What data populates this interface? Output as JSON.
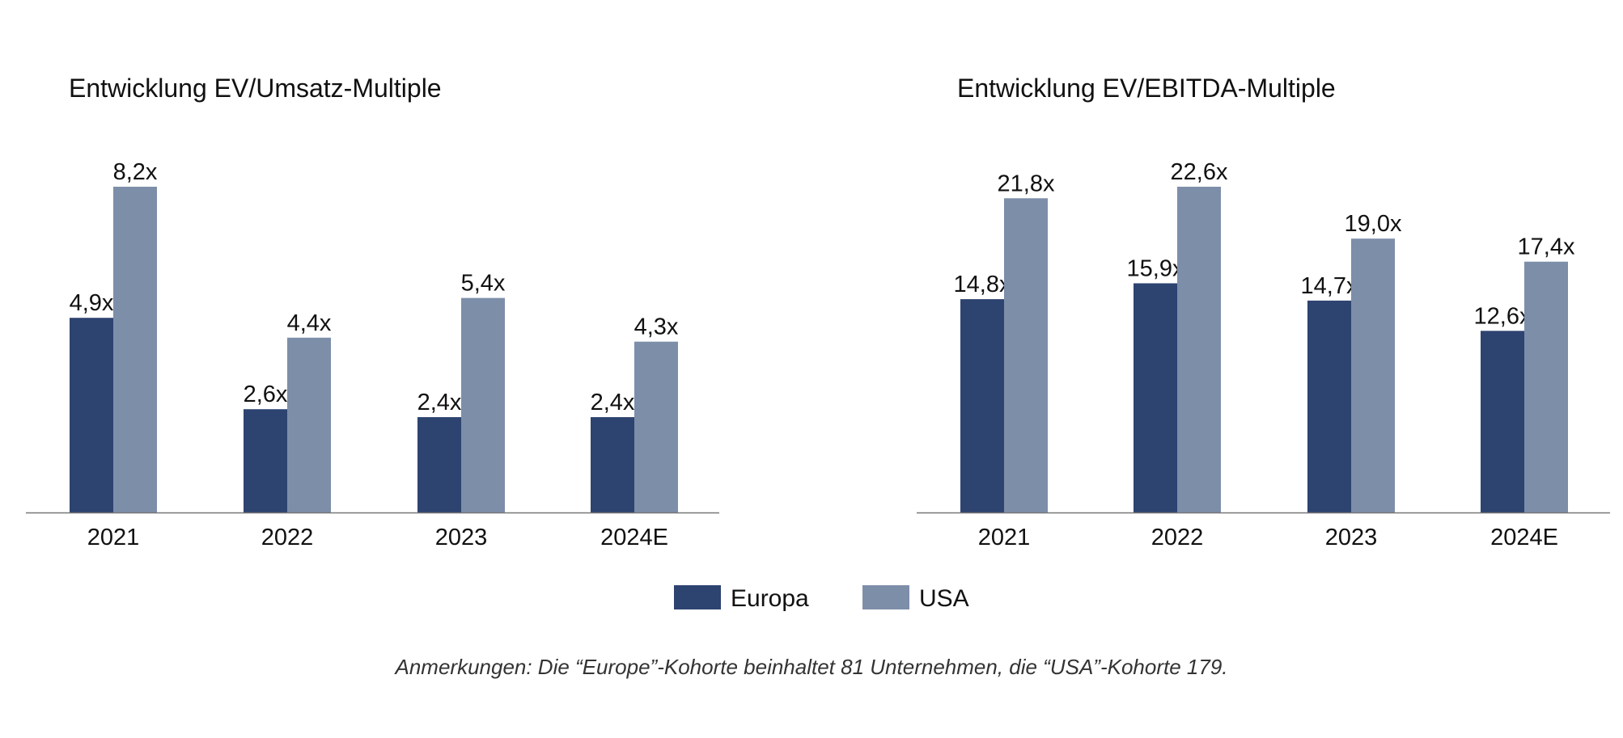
{
  "colors": {
    "europa": "#2d4370",
    "usa": "#7d8ea9",
    "axis": "#777777"
  },
  "legend": [
    {
      "name": "Europa",
      "color": "#2d4370"
    },
    {
      "name": "USA",
      "color": "#7d8ea9"
    }
  ],
  "footnote": "Anmerkungen: Die “Europe”-Kohorte beinhaltet 81 Unternehmen, die “USA”-Kohorte 179.",
  "chart_data": [
    {
      "type": "bar",
      "title": "Entwicklung EV/Umsatz-Multiple",
      "categories": [
        "2021",
        "2022",
        "2023",
        "2024E"
      ],
      "series": [
        {
          "name": "Europa",
          "values": [
            4.9,
            2.6,
            2.4,
            2.4
          ],
          "labels": [
            "4,9x",
            "2,6x",
            "2,4x",
            "2,4x"
          ]
        },
        {
          "name": "USA",
          "values": [
            8.2,
            4.4,
            5.4,
            4.3
          ],
          "labels": [
            "8,2x",
            "4,4x",
            "5,4x",
            "4,3x"
          ]
        }
      ],
      "xlabel": "",
      "ylabel": "",
      "ylim": [
        0,
        8.2
      ],
      "grid": false,
      "legend": "bottom-center"
    },
    {
      "type": "bar",
      "title": "Entwicklung EV/EBITDA-Multiple",
      "categories": [
        "2021",
        "2022",
        "2023",
        "2024E"
      ],
      "series": [
        {
          "name": "Europa",
          "values": [
            14.8,
            15.9,
            14.7,
            12.6
          ],
          "labels": [
            "14,8x",
            "15,9x",
            "14,7x",
            "12,6x"
          ]
        },
        {
          "name": "USA",
          "values": [
            21.8,
            22.6,
            19.0,
            17.4
          ],
          "labels": [
            "21,8x",
            "22,6x",
            "19,0x",
            "17,4x"
          ]
        }
      ],
      "xlabel": "",
      "ylabel": "",
      "ylim": [
        0,
        22.6
      ],
      "grid": false,
      "legend": "bottom-center"
    }
  ]
}
